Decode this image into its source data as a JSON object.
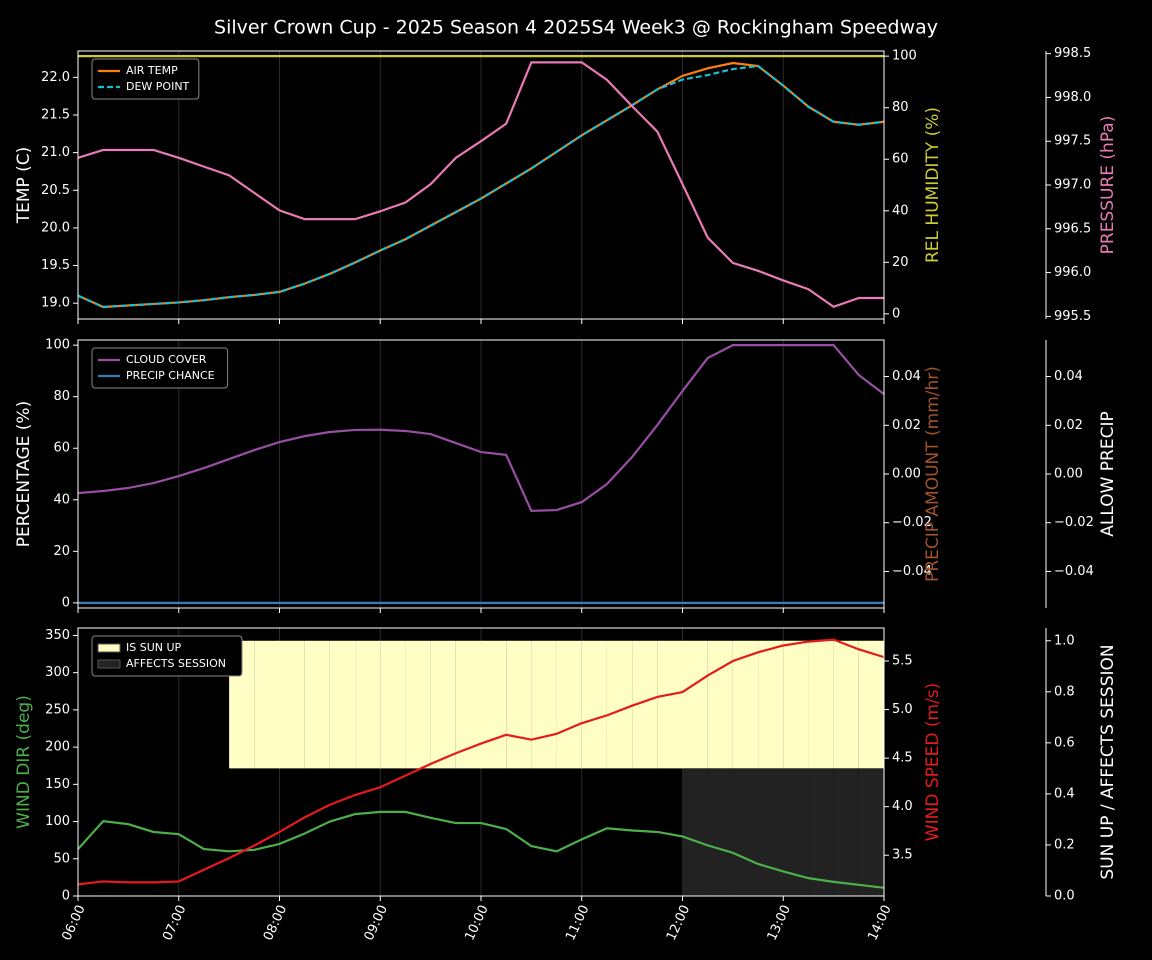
{
  "title": "Silver Crown Cup - 2025 Season 4 2025S4 Week3 @ Rockingham Speedway",
  "chart_data": [
    {
      "type": "line",
      "ylabel": "TEMP (C)",
      "ycolor": "#ffffff",
      "ylim": [
        18.79,
        22.35
      ],
      "yticks": [
        {
          "value": 19,
          "label": "19.0"
        },
        19.5,
        {
          "value": 20,
          "label": "20.0"
        },
        20.5,
        {
          "value": 21,
          "label": "21.0"
        },
        21.5,
        {
          "value": 22,
          "label": "22.0"
        }
      ],
      "y2label": "REL HUMIDITY (%)",
      "y2color": "#cccc33",
      "y2lim": [
        -2,
        102
      ],
      "y2ticks": [
        0,
        20,
        40,
        60,
        80,
        100
      ],
      "y3label": "PRESSURE (hPa)",
      "y3color": "#e87ab5",
      "y3lim": [
        995.47,
        998.53
      ],
      "y3ticks": [
        995.5,
        {
          "value": 996,
          "label": "996.0"
        },
        996.5,
        {
          "value": 997,
          "label": "997.0"
        },
        997.5,
        {
          "value": 998,
          "label": "998.0"
        },
        998.5
      ],
      "series": [
        {
          "name": "AIR TEMP",
          "color": "#ff7f0e",
          "values": [
            19.1,
            18.95,
            18.97,
            18.99,
            19.01,
            19.04,
            19.08,
            19.11,
            19.15,
            19.26,
            19.39,
            19.54,
            19.7,
            19.85,
            20.03,
            20.21,
            20.39,
            20.59,
            20.79,
            21.01,
            21.23,
            21.43,
            21.63,
            21.84,
            22.02,
            22.12,
            22.19,
            22.15,
            21.89,
            21.61,
            21.41,
            21.37,
            21.41
          ]
        },
        {
          "name": "DEW POINT",
          "color": "#17becf",
          "dash": true,
          "values": [
            19.1,
            18.95,
            18.97,
            18.99,
            19.01,
            19.04,
            19.08,
            19.11,
            19.15,
            19.26,
            19.39,
            19.54,
            19.7,
            19.85,
            20.03,
            20.21,
            20.39,
            20.59,
            20.79,
            21.01,
            21.23,
            21.43,
            21.63,
            21.84,
            21.97,
            22.03,
            22.11,
            22.15,
            21.89,
            21.61,
            21.41,
            21.37,
            21.41
          ]
        },
        {
          "color": "#cccc33",
          "axis": "y2",
          "values": [
            100,
            100,
            100,
            100,
            100,
            100,
            100,
            100,
            100,
            100,
            100,
            100,
            100,
            100,
            100,
            100,
            100,
            100,
            100,
            100,
            100,
            100,
            100,
            100,
            100,
            100,
            100,
            100,
            100,
            100,
            100,
            100,
            100
          ]
        },
        {
          "color": "#e87ab5",
          "axis": "y3",
          "values": [
            997.31,
            997.4,
            997.4,
            997.4,
            997.31,
            997.21,
            997.11,
            996.91,
            996.71,
            996.61,
            996.61,
            996.61,
            996.7,
            996.8,
            997.01,
            997.31,
            997.5,
            997.7,
            998.4,
            998.4,
            998.4,
            998.2,
            997.9,
            997.61,
            997.01,
            996.4,
            996.11,
            996.02,
            995.91,
            995.81,
            995.61,
            995.71,
            995.71
          ]
        }
      ]
    },
    {
      "type": "line",
      "ylabel": "PERCENTAGE (%)",
      "ycolor": "#ffffff",
      "ylim": [
        -2,
        102
      ],
      "yticks": [
        0,
        20,
        40,
        60,
        80,
        100
      ],
      "y2label": "PRECIP AMOUNT (mm/hr)",
      "y2color": "#a0522d",
      "y2lim": [
        -0.055,
        0.055
      ],
      "y2ticks": [
        {
          "value": -0.04,
          "label": "−0.04"
        },
        {
          "value": -0.02,
          "label": "−0.02"
        },
        {
          "value": 0,
          "label": "0.00"
        },
        0.02,
        0.04
      ],
      "y3label": "ALLOW PRECIP",
      "y3color": "#ffffff",
      "y3lim": [
        -0.055,
        0.055
      ],
      "y3ticks": [
        {
          "value": -0.04,
          "label": "−0.04"
        },
        {
          "value": -0.02,
          "label": "−0.02"
        },
        {
          "value": 0,
          "label": "0.00"
        },
        0.02,
        0.04
      ],
      "series": [
        {
          "name": "CLOUD COVER",
          "color": "#984ea3",
          "values": [
            42.6,
            43.4,
            44.6,
            46.5,
            49.2,
            52.3,
            55.8,
            59.3,
            62.4,
            64.7,
            66.3,
            67.1,
            67.2,
            66.7,
            65.5,
            62,
            58.5,
            57.4,
            35.7,
            36,
            39.1,
            46.1,
            56.6,
            69,
            82.2,
            95,
            100,
            100,
            100,
            100,
            100,
            88.4,
            81
          ]
        },
        {
          "name": "PRECIP CHANCE",
          "color": "#377eb8",
          "values": [
            0,
            0,
            0,
            0,
            0,
            0,
            0,
            0,
            0,
            0,
            0,
            0,
            0,
            0,
            0,
            0,
            0,
            0,
            0,
            0,
            0,
            0,
            0,
            0,
            0,
            0,
            0,
            0,
            0,
            0,
            0,
            0,
            0
          ]
        }
      ]
    },
    {
      "type": "line",
      "categories": [
        "06:00",
        null,
        null,
        null,
        "07:00",
        null,
        null,
        null,
        "08:00",
        null,
        null,
        null,
        "09:00",
        null,
        null,
        null,
        "10:00",
        null,
        null,
        null,
        "11:00",
        null,
        null,
        null,
        "12:00",
        null,
        null,
        null,
        "13:00",
        null,
        null,
        null,
        "14:00"
      ],
      "ylabel": "WIND DIR (deg)",
      "ycolor": "#4daf4a",
      "ylim": [
        0,
        360
      ],
      "yticks": [
        0,
        50,
        100,
        150,
        200,
        250,
        300,
        350
      ],
      "y2label": "WIND SPEED (m/s)",
      "y2color": "#e41a1c",
      "y2lim": [
        3.08,
        5.84
      ],
      "y2ticks": [
        3.5,
        {
          "value": 4,
          "label": "4.0"
        },
        4.5,
        {
          "value": 5,
          "label": "5.0"
        },
        5.5
      ],
      "y3label": "SUN UP / AFFECTS SESSION",
      "y3color": "#ffffff",
      "y3lim": [
        0,
        1.05
      ],
      "y3ticks": [
        {
          "value": 0,
          "label": "0.0"
        },
        0.2,
        0.4,
        0.6,
        0.8,
        {
          "value": 1,
          "label": "1.0"
        }
      ],
      "series": [
        {
          "name": "IS SUN UP",
          "color": "#ffffc5",
          "kind": "band",
          "band": "upper",
          "axis": "y3",
          "values": [
            0,
            0,
            0,
            0,
            0,
            0,
            1,
            1,
            1,
            1,
            1,
            1,
            1,
            1,
            1,
            1,
            1,
            1,
            1,
            1,
            1,
            1,
            1,
            1,
            1,
            1,
            1,
            1,
            1,
            1,
            1,
            1,
            1
          ]
        },
        {
          "name": "AFFECTS SESSION",
          "color": "#222222",
          "kind": "band",
          "band": "lower",
          "axis": "y3",
          "values": [
            0,
            0,
            0,
            0,
            0,
            0,
            0,
            0,
            0,
            0,
            0,
            0,
            0,
            0,
            0,
            0,
            0,
            0,
            0,
            0,
            0,
            0,
            0,
            0,
            1,
            1,
            1,
            1,
            1,
            1,
            1,
            1,
            1
          ]
        },
        {
          "color": "#4daf4a",
          "values": [
            63,
            100.5,
            96.5,
            86,
            83,
            63,
            60,
            62,
            70,
            84,
            100,
            110,
            113,
            113,
            105,
            98,
            98,
            90,
            67,
            60,
            76,
            91,
            88,
            86,
            80,
            68,
            58,
            43,
            33,
            24,
            19,
            15,
            11
          ]
        },
        {
          "color": "#e41a1c",
          "axis": "y2",
          "values": [
            3.2,
            3.23,
            3.22,
            3.22,
            3.23,
            3.35,
            3.47,
            3.6,
            3.74,
            3.89,
            4.02,
            4.12,
            4.2,
            4.32,
            4.44,
            4.55,
            4.65,
            4.74,
            4.69,
            4.75,
            4.86,
            4.94,
            5.04,
            5.13,
            5.18,
            5.35,
            5.5,
            5.59,
            5.66,
            5.7,
            5.72,
            5.62,
            5.54
          ]
        }
      ]
    }
  ]
}
